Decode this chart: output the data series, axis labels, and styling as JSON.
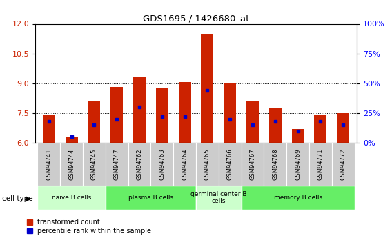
{
  "title": "GDS1695 / 1426680_at",
  "samples": [
    "GSM94741",
    "GSM94744",
    "GSM94745",
    "GSM94747",
    "GSM94762",
    "GSM94763",
    "GSM94764",
    "GSM94765",
    "GSM94766",
    "GSM94767",
    "GSM94768",
    "GSM94769",
    "GSM94771",
    "GSM94772"
  ],
  "transformed_count": [
    7.4,
    6.3,
    8.1,
    8.8,
    9.3,
    8.75,
    9.05,
    11.5,
    9.0,
    8.1,
    7.75,
    6.7,
    7.4,
    7.5
  ],
  "percentile_rank": [
    18,
    5,
    15,
    20,
    30,
    22,
    22,
    44,
    20,
    15,
    18,
    10,
    18,
    15
  ],
  "bar_color": "#cc2200",
  "marker_color": "#0000cc",
  "ylim_left": [
    6,
    12
  ],
  "ylim_right": [
    0,
    100
  ],
  "yticks_left": [
    6,
    7.5,
    9,
    10.5,
    12
  ],
  "yticks_right": [
    0,
    25,
    50,
    75,
    100
  ],
  "groups": [
    {
      "label": "naive B cells",
      "start": 0,
      "end": 3,
      "color": "#ccffcc"
    },
    {
      "label": "plasma B cells",
      "start": 3,
      "end": 7,
      "color": "#66ee66"
    },
    {
      "label": "germinal center B\ncells",
      "start": 7,
      "end": 9,
      "color": "#ccffcc"
    },
    {
      "label": "memory B cells",
      "start": 9,
      "end": 14,
      "color": "#66ee66"
    }
  ],
  "cell_type_label": "cell type",
  "legend_red": "transformed count",
  "legend_blue": "percentile rank within the sample",
  "tick_bg_color": "#cccccc",
  "bar_width": 0.55,
  "fig_width": 5.68,
  "fig_height": 3.45,
  "dpi": 100
}
